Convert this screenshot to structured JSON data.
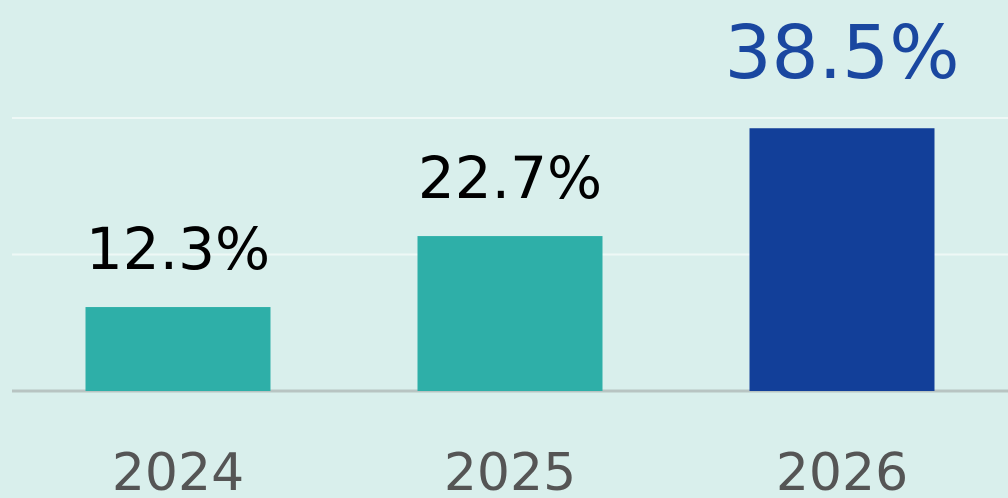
{
  "chart_data": {
    "type": "bar",
    "categories": [
      "2024",
      "2025",
      "2026"
    ],
    "values": [
      12.3,
      22.7,
      38.5
    ],
    "value_labels": [
      "12.3%",
      "22.7%",
      "38.5%"
    ],
    "colors": [
      "#2eafa8",
      "#2eafa8",
      "#123f99"
    ],
    "value_label_colors": [
      "#000000",
      "#000000",
      "#1a47a0"
    ],
    "ylim": [
      0,
      40
    ],
    "yticks": [
      0,
      20,
      40
    ],
    "grid": true
  }
}
